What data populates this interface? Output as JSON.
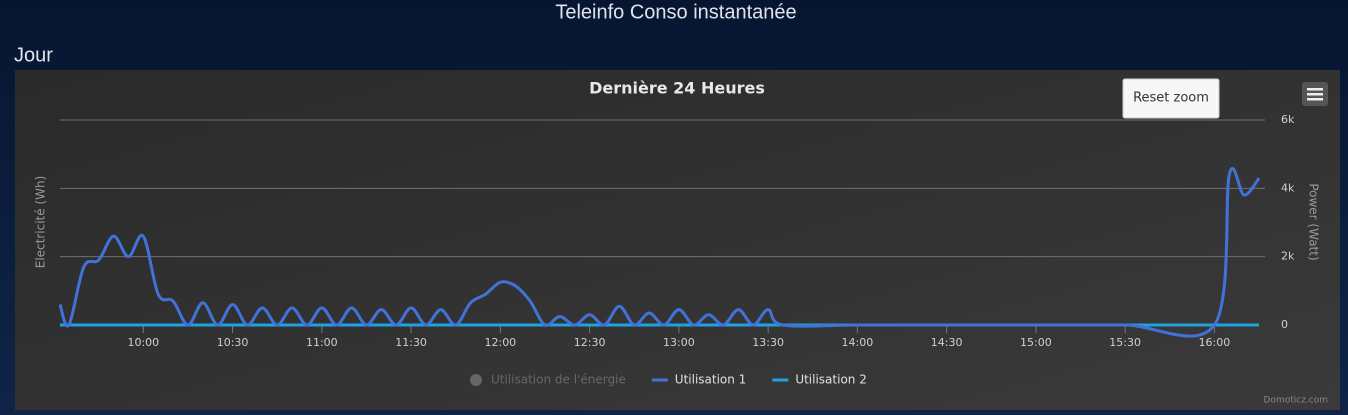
{
  "page_title": "Teleinfo Conso instantanée",
  "section": "Jour",
  "reset_zoom": "Reset zoom",
  "credit": "Domoticz.com",
  "chart_data": {
    "type": "line",
    "title": "Dernière 24 Heures",
    "y_label": "Electricité (Wh)",
    "y2_label": "Power (Watt)",
    "xlim": [
      "09:32",
      "16:17"
    ],
    "xticks": [
      "10:00",
      "10:30",
      "11:00",
      "11:30",
      "12:00",
      "12:30",
      "13:00",
      "13:30",
      "14:00",
      "14:30",
      "15:00",
      "15:30",
      "16:00"
    ],
    "y2lim": [
      0,
      6000
    ],
    "y2ticks": [
      0,
      {
        "value": 2000,
        "label": "2k"
      },
      {
        "value": 4000,
        "label": "4k"
      },
      {
        "value": 6000,
        "label": "6k"
      }
    ],
    "grid": true,
    "legend": "bottom",
    "x": [
      "09:32",
      "09:35",
      "09:40",
      "09:45",
      "09:50",
      "09:55",
      "10:00",
      "10:05",
      "10:10",
      "10:15",
      "10:20",
      "10:25",
      "10:30",
      "10:35",
      "10:40",
      "10:45",
      "10:50",
      "10:55",
      "11:00",
      "11:05",
      "11:10",
      "11:15",
      "11:20",
      "11:25",
      "11:30",
      "11:35",
      "11:40",
      "11:45",
      "11:50",
      "11:55",
      "12:00",
      "12:05",
      "12:10",
      "12:15",
      "12:20",
      "12:25",
      "12:30",
      "12:35",
      "12:40",
      "12:45",
      "12:50",
      "12:55",
      "13:00",
      "13:05",
      "13:10",
      "13:15",
      "13:20",
      "13:25",
      "13:30",
      "13:35",
      "14:00",
      "14:30",
      "15:00",
      "15:30",
      "16:00",
      "16:05",
      "16:10",
      "16:15"
    ],
    "series": [
      {
        "name": "Utilisation de l'énergie",
        "color": "#666666",
        "hidden": true
      },
      {
        "name": "Utilisation 1",
        "color": "#4172d8",
        "axis": "y2",
        "values": [
          600,
          0,
          1700,
          1900,
          2600,
          2000,
          2600,
          900,
          700,
          0,
          650,
          0,
          600,
          0,
          500,
          0,
          500,
          0,
          500,
          0,
          500,
          0,
          450,
          0,
          500,
          0,
          450,
          0,
          650,
          900,
          1250,
          1150,
          700,
          0,
          250,
          0,
          300,
          0,
          550,
          0,
          350,
          0,
          450,
          0,
          300,
          0,
          450,
          0,
          450,
          0,
          0,
          0,
          0,
          0,
          0,
          4400,
          3800,
          4300
        ]
      },
      {
        "name": "Utilisation 2",
        "color": "#1ea3de",
        "axis": "y2",
        "values": [
          0,
          0,
          0,
          0,
          0,
          0,
          0,
          0,
          0,
          0,
          0,
          0,
          0,
          0,
          0,
          0,
          0,
          0,
          0,
          0,
          0,
          0,
          0,
          0,
          0,
          0,
          0,
          0,
          0,
          0,
          0,
          0,
          0,
          0,
          0,
          0,
          0,
          0,
          0,
          0,
          0,
          0,
          0,
          0,
          0,
          0,
          0,
          0,
          0,
          0,
          0,
          0,
          0,
          0,
          0,
          0,
          0,
          0
        ]
      }
    ]
  }
}
